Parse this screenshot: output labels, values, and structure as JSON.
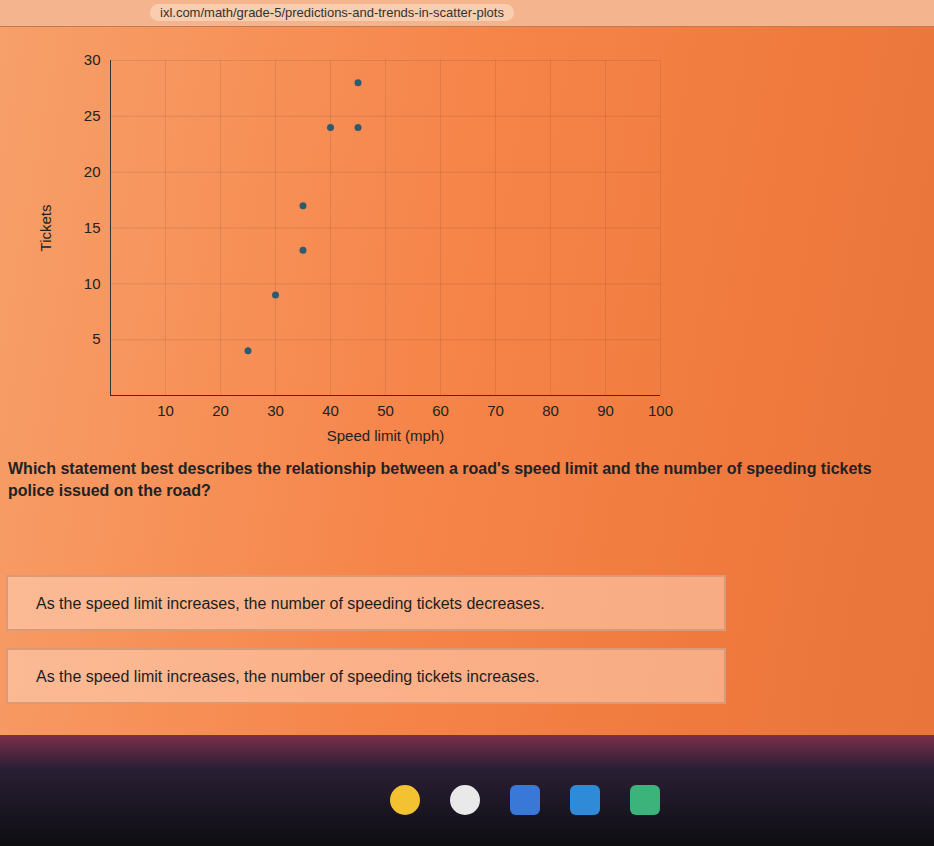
{
  "chart_data": {
    "type": "scatter",
    "x_label": "Speed limit (mph)",
    "y_label": "Tickets",
    "x": [
      25,
      30,
      35,
      35,
      40,
      45,
      45
    ],
    "values": [
      4,
      9,
      13,
      17,
      24,
      24,
      28
    ],
    "color": "#2d5b6e",
    "marker": "circle",
    "xlim": [
      0,
      100
    ],
    "xticks": [
      10,
      20,
      30,
      40,
      50,
      60,
      70,
      80,
      90,
      100
    ],
    "ylim": [
      0,
      30
    ],
    "yticks": [
      5,
      10,
      15,
      20,
      25,
      30
    ],
    "grid": true
  },
  "url": "ixl.com/math/grade-5/predictions-and-trends-in-scatter-plots",
  "question": "Which statement best describes the relationship between a road's speed limit and the number of speeding tickets police issued on the road?",
  "options": [
    "As the speed limit increases, the number of speeding tickets decreases.",
    "As the speed limit increases, the number of speeding tickets increases."
  ]
}
